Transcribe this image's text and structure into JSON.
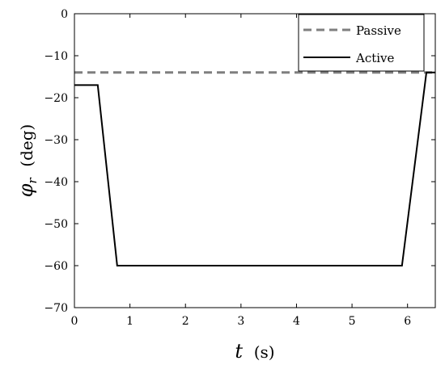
{
  "chart_data": {
    "type": "line",
    "xlabel": {
      "symbol": "t",
      "unit": "(s)"
    },
    "ylabel": {
      "symbol": "φ",
      "subscript": "r",
      "unit": "(deg)"
    },
    "xlim": [
      0,
      6.5
    ],
    "ylim": [
      -70,
      0
    ],
    "xticks": [
      0,
      1,
      2,
      3,
      4,
      5,
      6
    ],
    "yticks": [
      0,
      -10,
      -20,
      -30,
      -40,
      -50,
      -60,
      -70
    ],
    "ytick_labels": [
      "0",
      "−10",
      "−20",
      "−30",
      "−40",
      "−50",
      "−60",
      "−70"
    ],
    "grid": false,
    "legend_position": "top-right",
    "series": [
      {
        "name": "Passive",
        "color": "#7f7f7f",
        "style": "dashed",
        "x": [
          0,
          6.5
        ],
        "y": [
          -14,
          -14
        ]
      },
      {
        "name": "Active",
        "color": "#000000",
        "style": "solid",
        "x": [
          0,
          0.42,
          0.77,
          5.9,
          6.34,
          6.5
        ],
        "y": [
          -17,
          -17,
          -60,
          -60,
          -14,
          -14
        ]
      }
    ]
  }
}
